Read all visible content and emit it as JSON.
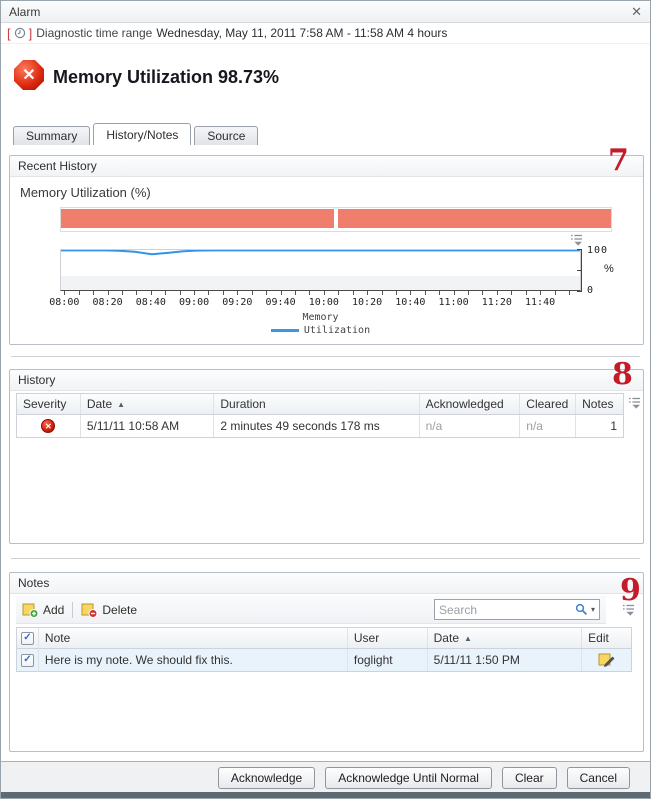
{
  "window": {
    "title": "Alarm"
  },
  "glyphs": {
    "close": "✕",
    "check": "✓",
    "severity_x": "✕",
    "sort_asc": "▲",
    "caret_down": "▾"
  },
  "diagnostic": {
    "label": "Diagnostic time range",
    "value": "Wednesday, May 11, 2011  7:58 AM - 11:58 AM  4 hours"
  },
  "alarm": {
    "title": "Memory Utilization 98.73%"
  },
  "tabs": [
    {
      "label": "Summary",
      "active": false
    },
    {
      "label": "History/Notes",
      "active": true
    },
    {
      "label": "Source",
      "active": false
    }
  ],
  "annotations": {
    "recent_history": "7",
    "history": "8",
    "notes": "9"
  },
  "recent_history": {
    "title": "Recent History"
  },
  "chart_data": {
    "type": "line",
    "title": "Memory Utilization (%)",
    "ylabel": "%",
    "ylim": [
      0,
      100
    ],
    "y_tick_labels": [
      "100",
      "0"
    ],
    "x_range_minutes": [
      0,
      240
    ],
    "x_start_time": "7:58 AM",
    "x_end_time": "11:58 AM",
    "x_ticks": [
      {
        "m": 2,
        "label": "08:00"
      },
      {
        "m": 22,
        "label": "08:20"
      },
      {
        "m": 42,
        "label": "08:40"
      },
      {
        "m": 62,
        "label": "09:00"
      },
      {
        "m": 82,
        "label": "09:20"
      },
      {
        "m": 102,
        "label": "09:40"
      },
      {
        "m": 122,
        "label": "10:00"
      },
      {
        "m": 142,
        "label": "10:20"
      },
      {
        "m": 162,
        "label": "10:40"
      },
      {
        "m": 182,
        "label": "11:00"
      },
      {
        "m": 202,
        "label": "11:20"
      },
      {
        "m": 222,
        "label": "11:40"
      }
    ],
    "x_minor_step": 6.667,
    "threshold_band": {
      "from": 0,
      "to": 36,
      "color": "#f2f3f4"
    },
    "alarm_band": {
      "color": "#ef7e6d",
      "segments": [
        [
          0,
          0.497
        ],
        [
          0.503,
          1
        ]
      ]
    },
    "legend": {
      "group": "Memory",
      "series": [
        {
          "name": "Utilization",
          "color": "#3b97e3"
        }
      ]
    },
    "series": [
      {
        "name": "Utilization",
        "color": "#2f93e8",
        "points": [
          [
            0,
            99
          ],
          [
            20,
            99
          ],
          [
            27,
            98.3
          ],
          [
            34,
            95.5
          ],
          [
            42,
            89.5
          ],
          [
            50,
            93
          ],
          [
            56,
            96.5
          ],
          [
            62,
            98.6
          ],
          [
            70,
            99
          ],
          [
            240,
            99
          ]
        ]
      }
    ]
  },
  "history": {
    "title": "History",
    "columns": [
      "Severity",
      "Date",
      "Duration",
      "Acknowledged",
      "Cleared",
      "Notes"
    ],
    "sort_column": "Date",
    "rows": [
      {
        "severity": "fatal",
        "date": "5/11/11 10:58 AM",
        "duration": "2 minutes 49 seconds 178 ms",
        "acknowledged": "n/a",
        "cleared": "n/a",
        "notes": "1"
      }
    ]
  },
  "notes": {
    "title": "Notes",
    "add_label": "Add",
    "delete_label": "Delete",
    "search_placeholder": "Search",
    "columns": [
      "Note",
      "User",
      "Date",
      "Edit"
    ],
    "sort_column": "Date",
    "rows": [
      {
        "checked": true,
        "note": "Here is my note. We should fix this.",
        "user": "foglight",
        "date": "5/11/11 1:50 PM"
      }
    ]
  },
  "footer": {
    "buttons": [
      "Acknowledge",
      "Acknowledge Until Normal",
      "Clear",
      "Cancel"
    ]
  }
}
